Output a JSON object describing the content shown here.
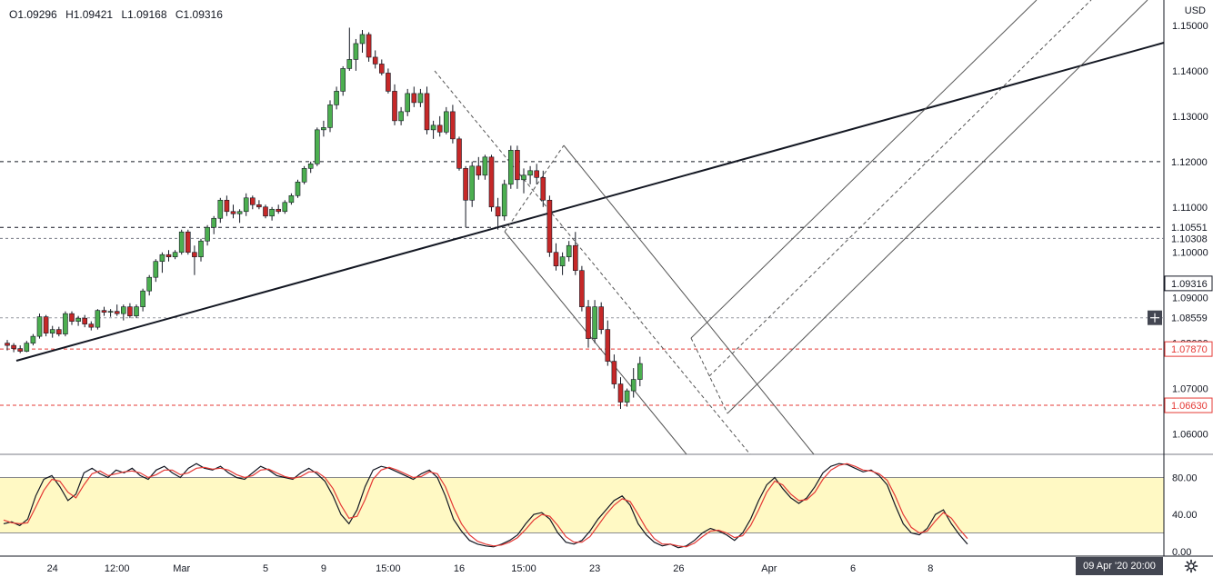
{
  "ohlc": {
    "open": "O1.09296",
    "high": "H1.09421",
    "low": "L1.09168",
    "close": "C1.09316"
  },
  "currency": "USD",
  "status_time": "09 Apr '20  20:00",
  "colors": {
    "up": "#26a69a",
    "up_fill": "#4caf50",
    "down": "#c62828",
    "axis": "#131722",
    "band": "#fff9c4",
    "red_level": "#e53935"
  },
  "chart_data": [
    {
      "type": "candlestick",
      "title": "",
      "ylabel": "",
      "ylim": [
        1.0555,
        1.1556
      ],
      "y_ticks": [
        1.06,
        1.07,
        1.08,
        1.09,
        1.1,
        1.11,
        1.12,
        1.13,
        1.14,
        1.15
      ],
      "y_tick_labels": [
        "1.06000",
        "1.07000",
        "1.08000",
        "1.09000",
        "1.10000",
        "1.11000",
        "1.12000",
        "1.13000",
        "1.14000",
        "1.15000"
      ],
      "x_tick_labels": [
        {
          "label": "24",
          "bar": 7
        },
        {
          "label": "12:00",
          "bar": 17
        },
        {
          "label": "Mar",
          "bar": 27
        },
        {
          "label": "5",
          "bar": 40
        },
        {
          "label": "9",
          "bar": 49
        },
        {
          "label": "15:00",
          "bar": 59
        },
        {
          "label": "16",
          "bar": 70
        },
        {
          "label": "15:00",
          "bar": 80
        },
        {
          "label": "23",
          "bar": 91
        },
        {
          "label": "26",
          "bar": 104
        },
        {
          "label": "Apr",
          "bar": 118
        },
        {
          "label": "6",
          "bar": 131
        },
        {
          "label": "8",
          "bar": 143
        }
      ],
      "price_labels": [
        {
          "value": 1.12,
          "text": "1.12000",
          "style": "black-dashed"
        },
        {
          "value": 1.10551,
          "text": "1.10551",
          "style": "black-dashed"
        },
        {
          "value": 1.10308,
          "text": "1.10308",
          "style": "gray-dashed"
        },
        {
          "value": 1.09316,
          "text": "1.09316",
          "style": "last"
        },
        {
          "value": 1.08559,
          "text": "1.08559",
          "style": "crosshair"
        },
        {
          "value": 1.0787,
          "text": "1.07870",
          "style": "red-dashed"
        },
        {
          "value": 1.0663,
          "text": "1.06630",
          "style": "red-dashed"
        }
      ],
      "candles": [
        [
          1.08,
          1.0807,
          1.0784,
          1.0795
        ],
        [
          1.0795,
          1.08,
          1.078,
          1.0788
        ],
        [
          1.0788,
          1.0795,
          1.0778,
          1.0782
        ],
        [
          1.0782,
          1.0805,
          1.078,
          1.08
        ],
        [
          1.08,
          1.082,
          1.0795,
          1.0815
        ],
        [
          1.0815,
          1.0865,
          1.081,
          1.0858
        ],
        [
          1.0858,
          1.0862,
          1.0815,
          1.0822
        ],
        [
          1.0822,
          1.0838,
          1.0812,
          1.083
        ],
        [
          1.083,
          1.0836,
          1.0815,
          1.082
        ],
        [
          1.082,
          1.087,
          1.0815,
          1.0865
        ],
        [
          1.0865,
          1.087,
          1.084,
          1.0848
        ],
        [
          1.0848,
          1.086,
          1.0838,
          1.0855
        ],
        [
          1.0855,
          1.0862,
          1.0835,
          1.0842
        ],
        [
          1.0842,
          1.0848,
          1.0828,
          1.0835
        ],
        [
          1.0835,
          1.0875,
          1.083,
          1.0872
        ],
        [
          1.0872,
          1.088,
          1.086,
          1.0868
        ],
        [
          1.0868,
          1.0875,
          1.0858,
          1.087
        ],
        [
          1.087,
          1.0885,
          1.086,
          1.0865
        ],
        [
          1.0865,
          1.0885,
          1.085,
          1.088
        ],
        [
          1.088,
          1.0888,
          1.0855,
          1.086
        ],
        [
          1.086,
          1.0885,
          1.0855,
          1.088
        ],
        [
          1.088,
          1.092,
          1.087,
          1.0915
        ],
        [
          1.0915,
          1.095,
          1.0905,
          1.0945
        ],
        [
          1.0945,
          1.0985,
          1.0935,
          1.098
        ],
        [
          1.098,
          1.1,
          1.0955,
          1.0995
        ],
        [
          1.0995,
          1.1005,
          1.098,
          1.099
        ],
        [
          1.099,
          1.1005,
          1.0985,
          1.1
        ],
        [
          1.1,
          1.105,
          1.0995,
          1.1045
        ],
        [
          1.1045,
          1.105,
          1.0995,
          1.1
        ],
        [
          1.1,
          1.1015,
          1.095,
          1.099
        ],
        [
          1.099,
          1.103,
          1.098,
          1.1025
        ],
        [
          1.1025,
          1.106,
          1.1015,
          1.1055
        ],
        [
          1.1055,
          1.108,
          1.104,
          1.1075
        ],
        [
          1.1075,
          1.112,
          1.1065,
          1.1115
        ],
        [
          1.1115,
          1.1125,
          1.108,
          1.109
        ],
        [
          1.109,
          1.1105,
          1.1075,
          1.1085
        ],
        [
          1.1085,
          1.1095,
          1.1065,
          1.109
        ],
        [
          1.109,
          1.113,
          1.108,
          1.112
        ],
        [
          1.112,
          1.1125,
          1.1095,
          1.1105
        ],
        [
          1.1105,
          1.1115,
          1.1095,
          1.11
        ],
        [
          1.11,
          1.1105,
          1.1075,
          1.108
        ],
        [
          1.108,
          1.11,
          1.107,
          1.1095
        ],
        [
          1.1095,
          1.1105,
          1.1085,
          1.109
        ],
        [
          1.109,
          1.1115,
          1.1085,
          1.111
        ],
        [
          1.111,
          1.113,
          1.1105,
          1.1125
        ],
        [
          1.1125,
          1.116,
          1.112,
          1.1155
        ],
        [
          1.1155,
          1.119,
          1.115,
          1.1185
        ],
        [
          1.1185,
          1.12,
          1.1175,
          1.1195
        ],
        [
          1.1195,
          1.1275,
          1.119,
          1.127
        ],
        [
          1.127,
          1.129,
          1.1255,
          1.1275
        ],
        [
          1.1275,
          1.1335,
          1.1265,
          1.1325
        ],
        [
          1.1325,
          1.1365,
          1.1315,
          1.1355
        ],
        [
          1.1355,
          1.141,
          1.1345,
          1.1405
        ],
        [
          1.1405,
          1.1495,
          1.14,
          1.1425
        ],
        [
          1.1425,
          1.147,
          1.14,
          1.146
        ],
        [
          1.146,
          1.149,
          1.144,
          1.148
        ],
        [
          1.148,
          1.1485,
          1.142,
          1.143
        ],
        [
          1.143,
          1.1445,
          1.1405,
          1.1415
        ],
        [
          1.1415,
          1.1425,
          1.139,
          1.1395
        ],
        [
          1.1395,
          1.1405,
          1.135,
          1.1355
        ],
        [
          1.1355,
          1.137,
          1.128,
          1.129
        ],
        [
          1.129,
          1.132,
          1.128,
          1.131
        ],
        [
          1.131,
          1.136,
          1.13,
          1.135
        ],
        [
          1.135,
          1.1365,
          1.132,
          1.133
        ],
        [
          1.133,
          1.136,
          1.132,
          1.135
        ],
        [
          1.135,
          1.1365,
          1.126,
          1.127
        ],
        [
          1.127,
          1.129,
          1.125,
          1.128
        ],
        [
          1.128,
          1.13,
          1.1255,
          1.1265
        ],
        [
          1.1265,
          1.132,
          1.126,
          1.131
        ],
        [
          1.131,
          1.1325,
          1.124,
          1.125
        ],
        [
          1.125,
          1.1255,
          1.118,
          1.1185
        ],
        [
          1.1185,
          1.119,
          1.1055,
          1.1115
        ],
        [
          1.1115,
          1.12,
          1.11,
          1.119
        ],
        [
          1.119,
          1.121,
          1.116,
          1.117
        ],
        [
          1.117,
          1.1215,
          1.116,
          1.121
        ],
        [
          1.121,
          1.1215,
          1.109,
          1.11
        ],
        [
          1.11,
          1.112,
          1.105,
          1.108
        ],
        [
          1.108,
          1.116,
          1.107,
          1.115
        ],
        [
          1.115,
          1.1235,
          1.114,
          1.1225
        ],
        [
          1.1225,
          1.1235,
          1.114,
          1.116
        ],
        [
          1.116,
          1.1185,
          1.113,
          1.117
        ],
        [
          1.117,
          1.119,
          1.115,
          1.118
        ],
        [
          1.118,
          1.1195,
          1.115,
          1.1165
        ],
        [
          1.1165,
          1.118,
          1.11,
          1.1115
        ],
        [
          1.1115,
          1.1125,
          1.099,
          1.1
        ],
        [
          1.1,
          1.102,
          1.096,
          1.097
        ],
        [
          1.097,
          1.1,
          1.095,
          1.099
        ],
        [
          1.099,
          1.1025,
          1.098,
          1.1015
        ],
        [
          1.1015,
          1.1045,
          1.095,
          1.096
        ],
        [
          1.096,
          1.097,
          1.087,
          1.088
        ],
        [
          1.088,
          1.0895,
          1.079,
          1.081
        ],
        [
          1.081,
          1.0895,
          1.08,
          1.088
        ],
        [
          1.088,
          1.089,
          1.082,
          1.083
        ],
        [
          1.083,
          1.085,
          1.075,
          1.076
        ],
        [
          1.076,
          1.0775,
          1.07,
          1.071
        ],
        [
          1.071,
          1.0725,
          1.0655,
          1.067
        ],
        [
          1.067,
          1.07,
          1.066,
          1.0695
        ],
        [
          1.0695,
          1.0745,
          1.068,
          1.072
        ],
        [
          1.072,
          1.077,
          1.0705,
          1.0755
        ]
      ]
    },
    {
      "type": "line",
      "title": "",
      "ylim": [
        -5,
        105
      ],
      "y_tick_labels": [
        "80.00",
        "40.00",
        "0.00"
      ],
      "y_ticks": [
        80,
        40,
        0
      ],
      "band": [
        20,
        80
      ],
      "series": [
        {
          "color": "#131722",
          "values": [
            30,
            32,
            28,
            35,
            60,
            78,
            82,
            70,
            55,
            62,
            85,
            90,
            84,
            80,
            88,
            85,
            90,
            82,
            78,
            88,
            92,
            85,
            80,
            90,
            95,
            90,
            88,
            92,
            85,
            80,
            78,
            85,
            92,
            88,
            82,
            80,
            78,
            85,
            90,
            84,
            76,
            60,
            40,
            30,
            45,
            70,
            88,
            92,
            90,
            86,
            82,
            78,
            84,
            88,
            80,
            60,
            35,
            22,
            12,
            8,
            6,
            5,
            8,
            12,
            18,
            30,
            40,
            42,
            35,
            20,
            10,
            8,
            12,
            22,
            35,
            45,
            55,
            60,
            50,
            30,
            18,
            10,
            6,
            8,
            4,
            6,
            12,
            20,
            25,
            22,
            18,
            12,
            20,
            35,
            55,
            72,
            80,
            68,
            58,
            52,
            58,
            70,
            85,
            92,
            95,
            94,
            90,
            86,
            88,
            82,
            72,
            50,
            30,
            20,
            18,
            25,
            40,
            45,
            30,
            18,
            8
          ]
        },
        {
          "color": "#e53935",
          "values": [
            34,
            31,
            30,
            31,
            48,
            66,
            78,
            76,
            64,
            58,
            72,
            84,
            87,
            82,
            84,
            86,
            87,
            85,
            80,
            83,
            88,
            88,
            83,
            85,
            90,
            91,
            89,
            90,
            88,
            83,
            80,
            82,
            88,
            89,
            85,
            81,
            79,
            81,
            86,
            86,
            80,
            68,
            50,
            36,
            38,
            56,
            78,
            88,
            91,
            88,
            84,
            80,
            81,
            86,
            84,
            70,
            48,
            30,
            18,
            11,
            8,
            6,
            7,
            10,
            15,
            24,
            34,
            40,
            38,
            28,
            16,
            10,
            10,
            16,
            28,
            40,
            50,
            57,
            54,
            40,
            25,
            14,
            8,
            8,
            6,
            5,
            9,
            16,
            22,
            23,
            20,
            15,
            17,
            28,
            45,
            64,
            76,
            72,
            62,
            55,
            56,
            64,
            78,
            88,
            93,
            95,
            92,
            88,
            87,
            84,
            77,
            60,
            40,
            26,
            20,
            22,
            33,
            42,
            36,
            24,
            14
          ]
        }
      ]
    }
  ]
}
